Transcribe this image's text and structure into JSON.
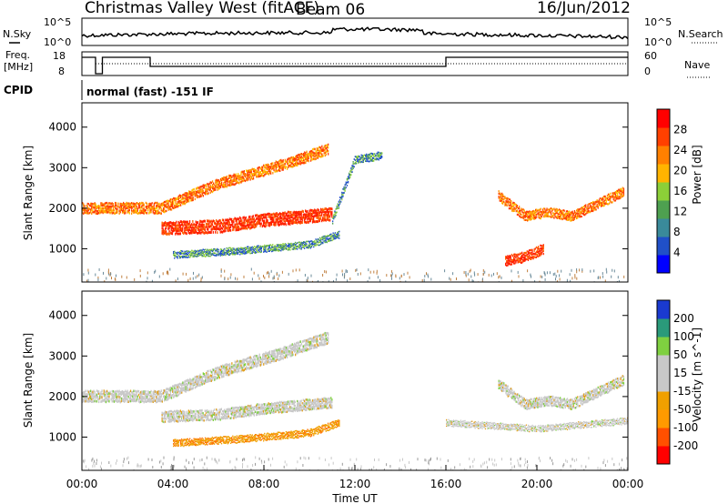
{
  "header": {
    "station": "Christmas Valley West (fitACF)",
    "beam": "Beam 06",
    "date": "16/Jun/2012"
  },
  "status_panels": {
    "noise": {
      "left_label": "N.Sky",
      "right_label": "N.Search",
      "left_ticks": [
        "10^5",
        "10^0"
      ],
      "right_ticks": [
        "10^5",
        "10^0"
      ]
    },
    "freq": {
      "left_label_1": "Freq.",
      "left_label_2": "[MHz]",
      "right_label": "Nave",
      "left_ticks": [
        "18",
        "8"
      ],
      "right_ticks": [
        "60",
        "0"
      ]
    },
    "cpid": {
      "label": "CPID",
      "value": "normal (fast) -151 IF"
    }
  },
  "chart_data": [
    {
      "type": "heatmap",
      "panel": "power",
      "ylabel": "Slant Range [km]",
      "ylim": [
        180,
        4600
      ],
      "yticks": [
        1000,
        2000,
        3000,
        4000
      ],
      "x_range_hours_UT": [
        0,
        24
      ],
      "colorbar": {
        "label": "Power [dB]",
        "ticks": [
          "28",
          "24",
          "20",
          "16",
          "12",
          "8",
          "4"
        ],
        "colors": [
          "#0000ff",
          "#2050c8",
          "#3a8a9a",
          "#4ea050",
          "#8ccf38",
          "#ffb400",
          "#ff8000",
          "#ff4000",
          "#ff0000"
        ]
      },
      "bands": [
        {
          "t": [
            0,
            3.5,
            6,
            9,
            10.8
          ],
          "r": [
            2000,
            2000,
            2600,
            3100,
            3450
          ],
          "width": 280,
          "level": "high"
        },
        {
          "t": [
            3.5,
            6,
            8,
            11
          ],
          "r": [
            1500,
            1550,
            1700,
            1850
          ],
          "width": 330,
          "level": "very high"
        },
        {
          "t": [
            4,
            7,
            10,
            11.3
          ],
          "r": [
            850,
            950,
            1100,
            1350
          ],
          "width": 180,
          "level": "medium"
        },
        {
          "t": [
            11,
            12,
            13.2
          ],
          "r": [
            1700,
            3200,
            3300
          ],
          "width": 200,
          "level": "medium"
        },
        {
          "t": [
            18.3,
            19.5,
            20.5,
            21.5,
            23.8
          ],
          "r": [
            2300,
            1800,
            1900,
            1800,
            2400
          ],
          "width": 250,
          "level": "high"
        },
        {
          "t": [
            18.6,
            19.5,
            20.3
          ],
          "r": [
            700,
            800,
            1000
          ],
          "width": 260,
          "level": "very high"
        }
      ]
    },
    {
      "type": "heatmap",
      "panel": "velocity",
      "ylabel": "Slant Range [km]",
      "ylim": [
        180,
        4600
      ],
      "yticks": [
        1000,
        2000,
        3000,
        4000
      ],
      "xlabel": "Time UT",
      "xticks": [
        "00:00",
        "04:00",
        "08:00",
        "12:00",
        "16:00",
        "20:00",
        "00:00"
      ],
      "colorbar": {
        "label": "Velocity [m s^-1]",
        "ticks": [
          "200",
          "100",
          "50",
          "15",
          "-15",
          "-50",
          "-100",
          "-200"
        ],
        "colors": [
          "#ff0000",
          "#ff5000",
          "#ff9a00",
          "#f0a000",
          "#c8c8c8",
          "#c8c8c8",
          "#7fd040",
          "#2a9a7a",
          "#1a3ad0"
        ]
      },
      "bands": [
        {
          "t": [
            0,
            3.5,
            6,
            9,
            10.8
          ],
          "r": [
            2000,
            2000,
            2600,
            3100,
            3450
          ],
          "width": 300,
          "level": "gray"
        },
        {
          "t": [
            3.5,
            6,
            8,
            11
          ],
          "r": [
            1500,
            1550,
            1700,
            1850
          ],
          "width": 280,
          "level": "gray"
        },
        {
          "t": [
            4,
            7,
            10,
            11.3
          ],
          "r": [
            850,
            950,
            1100,
            1350
          ],
          "width": 180,
          "level": "orange"
        },
        {
          "t": [
            18.3,
            19.5,
            20.5,
            21.5,
            23.8
          ],
          "r": [
            2300,
            1800,
            1900,
            1800,
            2400
          ],
          "width": 260,
          "level": "gray"
        },
        {
          "t": [
            16,
            20,
            24
          ],
          "r": [
            1350,
            1200,
            1400
          ],
          "width": 160,
          "level": "gray"
        }
      ]
    }
  ]
}
